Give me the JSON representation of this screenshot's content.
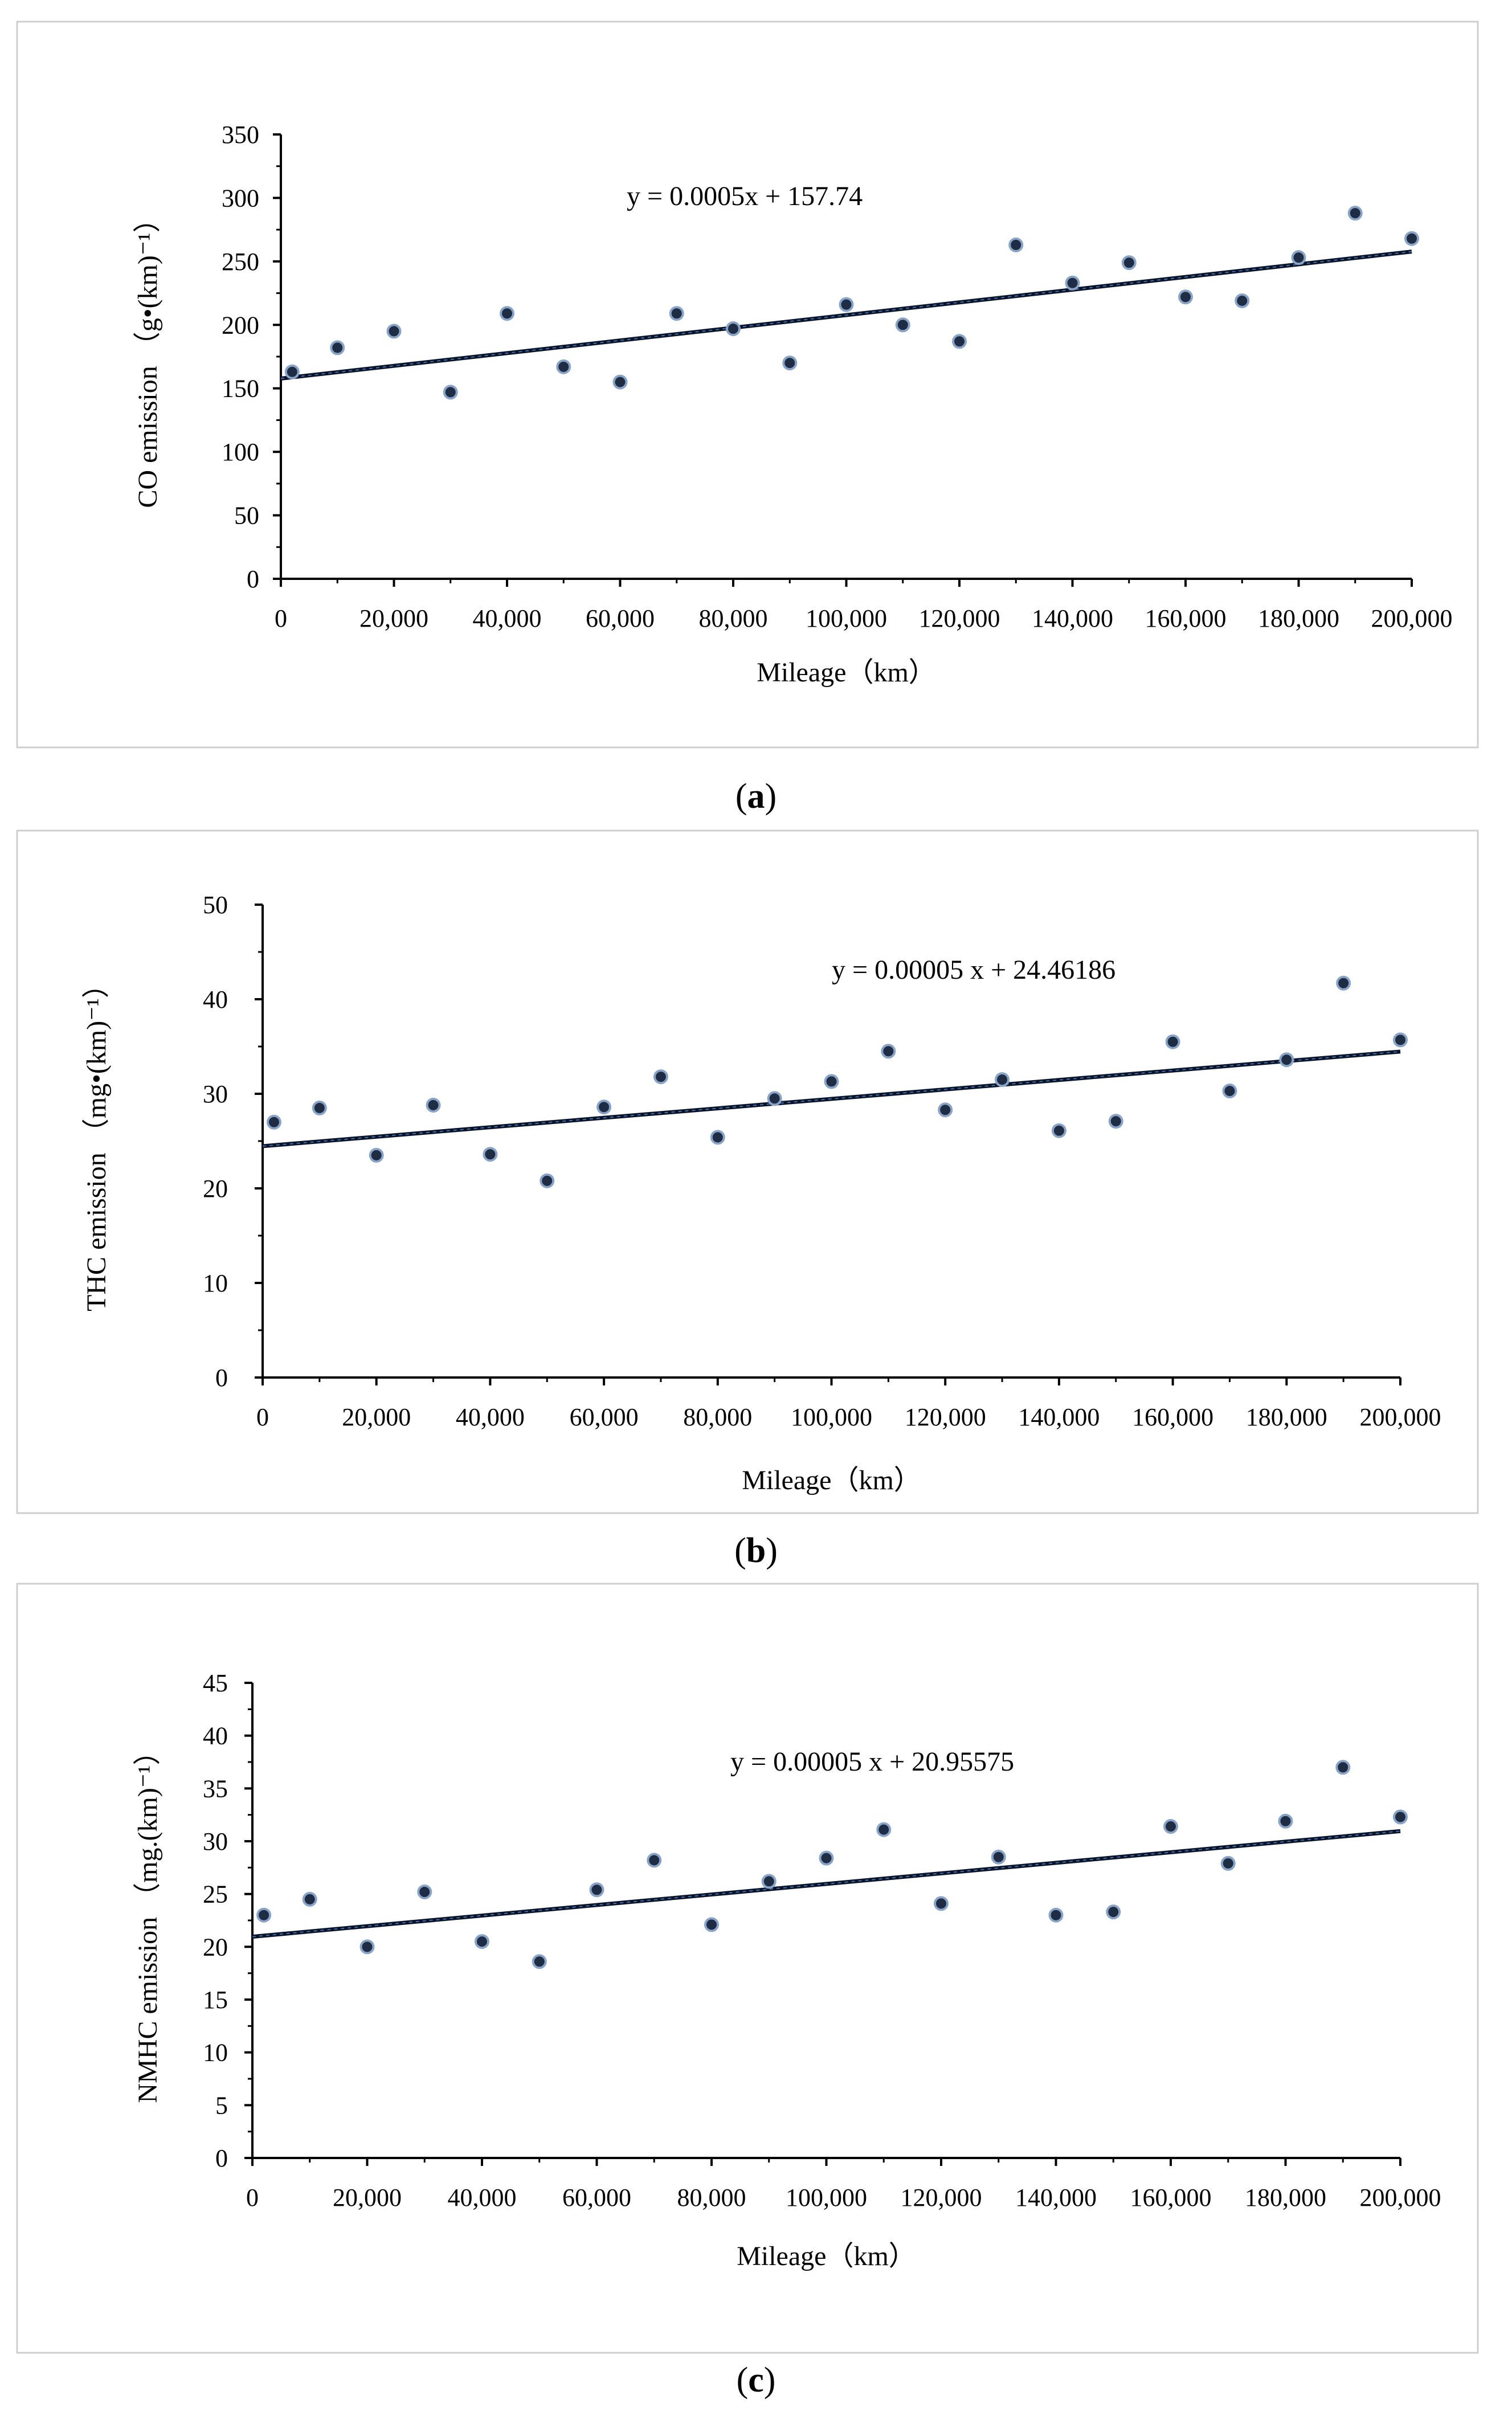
{
  "colors": {
    "marker_fill": "#1f2d44",
    "marker_edge": "#8aa4c8",
    "trendline_dark": "#0b1326",
    "trendline_blue": "#3f6fb0",
    "axis": "#000000",
    "panel_border": "#cfcfcf"
  },
  "chart_data": [
    {
      "type": "scatter",
      "caption": "a",
      "xlabel": "Mileage（km）",
      "ylabel": "CO emission （g•(km)⁻¹）",
      "equation": "y = 0.0005x + 157.74",
      "xlim": [
        0,
        200000
      ],
      "ylim": [
        0,
        350
      ],
      "x_ticks": [
        0,
        20000,
        40000,
        60000,
        80000,
        100000,
        120000,
        140000,
        160000,
        180000,
        200000
      ],
      "x_tick_labels": [
        "0",
        "20,000",
        "40,000",
        "60,000",
        "80,000",
        "100,000",
        "120,000",
        "140,000",
        "160,000",
        "180,000",
        "200,000"
      ],
      "y_ticks": [
        0,
        50,
        100,
        150,
        200,
        250,
        300,
        350
      ],
      "y_tick_labels": [
        "0",
        "50",
        "100",
        "150",
        "200",
        "250",
        "300",
        "350"
      ],
      "trendline": {
        "slope": 0.0005,
        "intercept": 157.74,
        "x_range": [
          0,
          200000
        ]
      },
      "series": [
        {
          "x": [
            2000,
            10000,
            20000,
            30000,
            40000,
            50000,
            60000,
            70000,
            80000,
            90000,
            100000,
            110000,
            120000,
            130000,
            140000,
            150000,
            160000,
            170000,
            180000,
            190000,
            200000
          ],
          "y": [
            163,
            182,
            195,
            147,
            209,
            167,
            155,
            209,
            197,
            170,
            216,
            200,
            187,
            263,
            233,
            249,
            222,
            219,
            253,
            288,
            268
          ]
        }
      ]
    },
    {
      "type": "scatter",
      "caption": "b",
      "xlabel": "Mileage（km）",
      "ylabel": "THC emission （mg•(km)⁻¹）",
      "equation": "y = 0.00005 x + 24.46186",
      "xlim": [
        0,
        200000
      ],
      "ylim": [
        0,
        50
      ],
      "x_ticks": [
        0,
        20000,
        40000,
        60000,
        80000,
        100000,
        120000,
        140000,
        160000,
        180000,
        200000
      ],
      "x_tick_labels": [
        "0",
        "20,000",
        "40,000",
        "60,000",
        "80,000",
        "100,000",
        "120,000",
        "140,000",
        "160,000",
        "180,000",
        "200,000"
      ],
      "y_ticks": [
        0,
        10,
        20,
        30,
        40,
        50
      ],
      "y_tick_labels": [
        "0",
        "10",
        "20",
        "30",
        "40",
        "50"
      ],
      "trendline": {
        "slope": 5e-05,
        "intercept": 24.46186,
        "x_range": [
          0,
          200000
        ]
      },
      "series": [
        {
          "x": [
            2000,
            10000,
            20000,
            30000,
            40000,
            50000,
            60000,
            70000,
            80000,
            90000,
            100000,
            110000,
            120000,
            130000,
            140000,
            150000,
            160000,
            170000,
            180000,
            190000,
            200000
          ],
          "y": [
            27.0,
            28.5,
            23.5,
            28.8,
            23.6,
            20.8,
            28.6,
            31.8,
            25.4,
            29.5,
            31.3,
            34.5,
            28.3,
            31.5,
            26.1,
            27.1,
            35.5,
            30.3,
            33.6,
            41.7,
            35.7
          ]
        }
      ]
    },
    {
      "type": "scatter",
      "caption": "c",
      "xlabel": "Mileage（km）",
      "ylabel": "NMHC emission （mg.(km)⁻¹）",
      "equation": "y = 0.00005 x + 20.95575",
      "xlim": [
        0,
        200000
      ],
      "ylim": [
        0,
        45
      ],
      "x_ticks": [
        0,
        20000,
        40000,
        60000,
        80000,
        100000,
        120000,
        140000,
        160000,
        180000,
        200000
      ],
      "x_tick_labels": [
        "0",
        "20,000",
        "40,000",
        "60,000",
        "80,000",
        "100,000",
        "120,000",
        "140,000",
        "160,000",
        "180,000",
        "200,000"
      ],
      "y_ticks": [
        0,
        5,
        10,
        15,
        20,
        25,
        30,
        35,
        40,
        45
      ],
      "y_tick_labels": [
        "0",
        "5",
        "10",
        "15",
        "20",
        "25",
        "30",
        "35",
        "40",
        "45"
      ],
      "trendline": {
        "slope": 5e-05,
        "intercept": 20.95575,
        "x_range": [
          0,
          200000
        ]
      },
      "series": [
        {
          "x": [
            2000,
            10000,
            20000,
            30000,
            40000,
            50000,
            60000,
            70000,
            80000,
            90000,
            100000,
            110000,
            120000,
            130000,
            140000,
            150000,
            160000,
            170000,
            180000,
            190000,
            200000
          ],
          "y": [
            23.0,
            24.5,
            20.0,
            25.2,
            20.5,
            18.6,
            25.4,
            28.2,
            22.1,
            26.2,
            28.4,
            31.1,
            24.1,
            28.5,
            23.0,
            23.3,
            31.4,
            27.9,
            31.9,
            37.0,
            32.3
          ]
        }
      ]
    }
  ]
}
